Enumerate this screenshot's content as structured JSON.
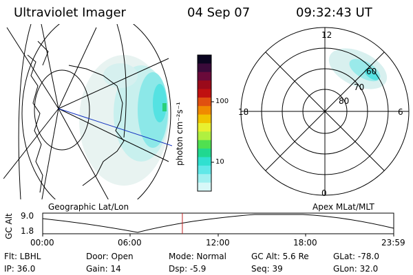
{
  "header": {
    "instrument": "Ultraviolet Imager",
    "date": "04 Sep 07",
    "time": "09:32:43 UT"
  },
  "geo_panel": {
    "label": "Geographic Lat/Lon"
  },
  "polar_panel": {
    "label": "Apex MLat/MLT",
    "mlt_labels": [
      "12",
      "18",
      "6",
      "0"
    ],
    "lat_labels": [
      "60",
      "70",
      "80"
    ]
  },
  "colorbar": {
    "unit_label": "photon cm⁻²s⁻¹",
    "ticks": [
      "100",
      "10"
    ],
    "colors": [
      "#0a0520",
      "#3a0a3a",
      "#6a0a3a",
      "#9a0a1a",
      "#c01010",
      "#e05010",
      "#f08a00",
      "#f0c400",
      "#e8f030",
      "#b0f040",
      "#50e050",
      "#20d890",
      "#30e0d0",
      "#60e8e8",
      "#a0f0f0",
      "#d8f8f8"
    ]
  },
  "altitude_plot": {
    "ylabel": "GC Alt",
    "yticks": [
      "9.0",
      "1.8"
    ],
    "xticks": [
      "00:00",
      "06:00",
      "12:00",
      "18:00",
      "23:59"
    ],
    "current_marker_hour": 9.55,
    "marker_color": "#c02020"
  },
  "footer": {
    "flt": "Flt: LBHL",
    "ip": "IP: 36.0",
    "door": "Door: Open",
    "gain": "Gain: 14",
    "mode": "Mode: Normal",
    "dsp": "Dsp:    -5.9",
    "gcalt": "GC Alt: 5.6 Re",
    "seq": "Seq: 39",
    "glat": "GLat:  -78.0",
    "glon": "GLon:   32.0"
  }
}
